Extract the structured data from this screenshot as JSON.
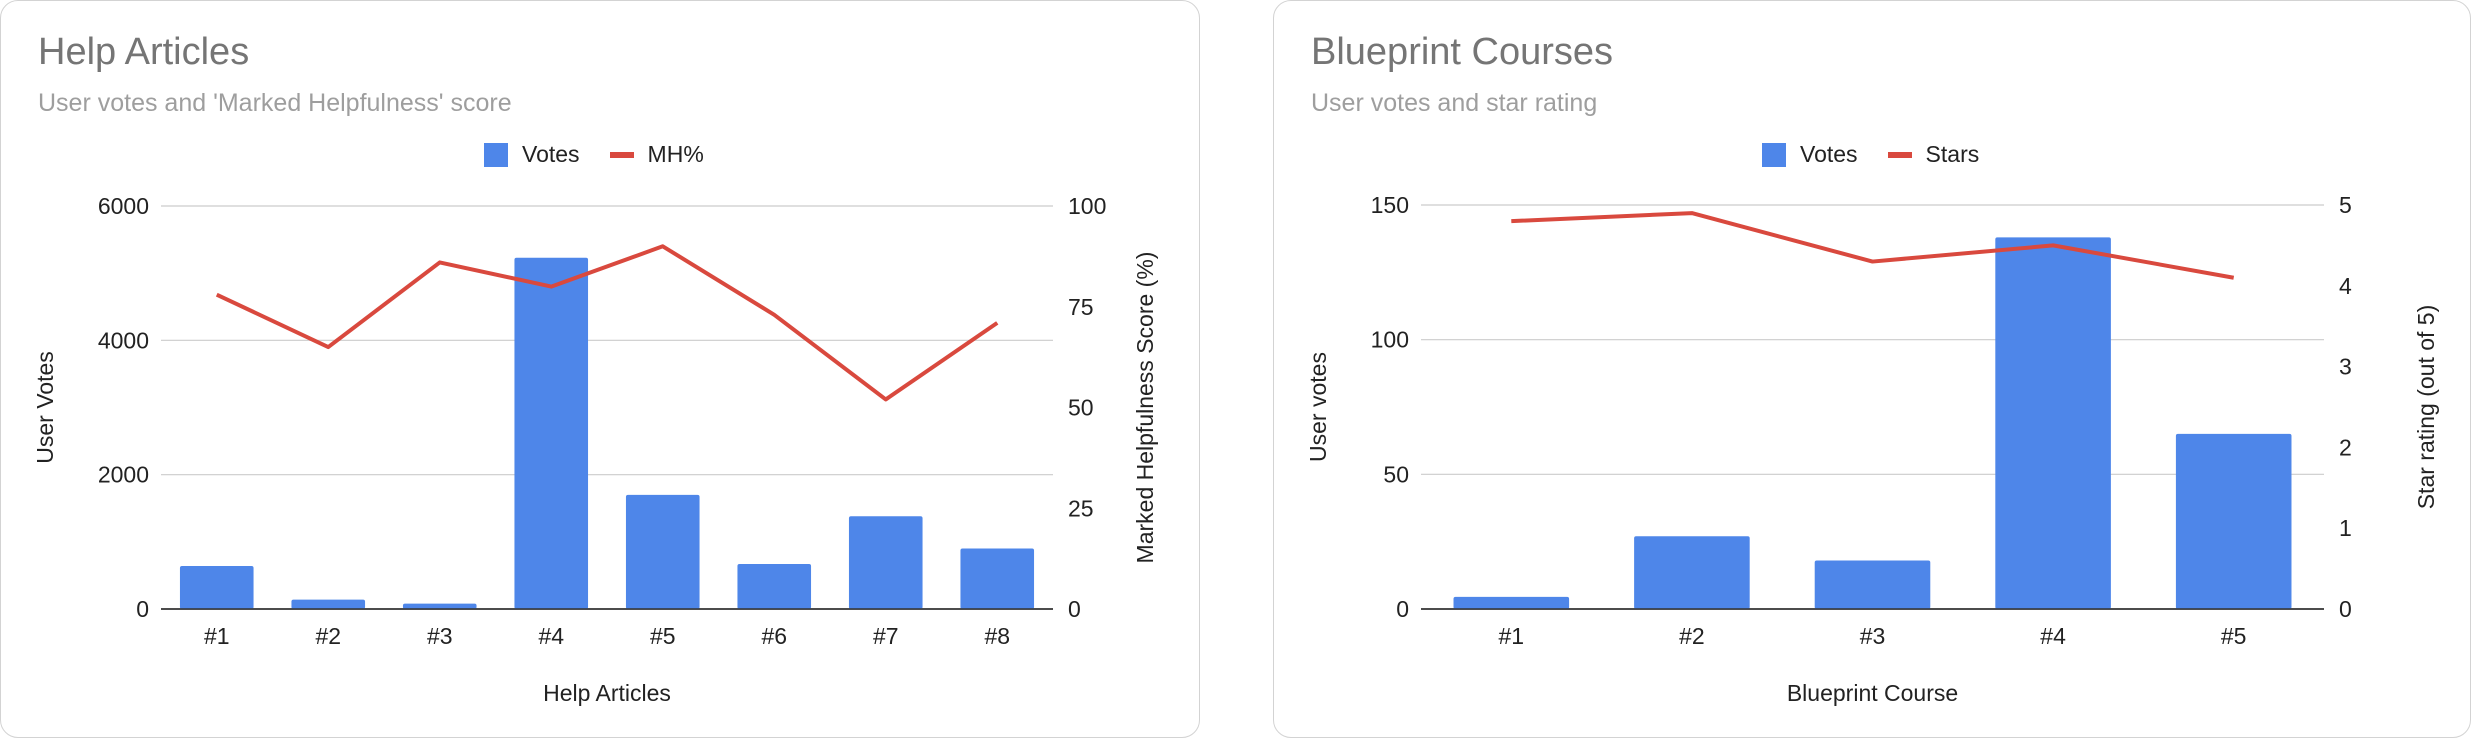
{
  "colors": {
    "bars": "#4e86e9",
    "line": "#d9493e",
    "grid": "#cccccc",
    "border": "#d3d3d3"
  },
  "chart_data": [
    {
      "type": "bar+line",
      "title": "Help Articles",
      "subtitle": "User votes and 'Marked Helpfulness' score",
      "legend": [
        "Votes",
        "MH%"
      ],
      "legend_position": "top",
      "grid": true,
      "xlabel": "Help Articles",
      "ylabel_left": "User Votes",
      "ylabel_right": "Marked Helpfulness Score (%)",
      "categories": [
        "#1",
        "#2",
        "#3",
        "#4",
        "#5",
        "#6",
        "#7",
        "#8"
      ],
      "y_left_ticks": [
        "0",
        "2000",
        "4000",
        "6000"
      ],
      "y_right_ticks": [
        "0",
        "25",
        "50",
        "75",
        "100"
      ],
      "ylim_left": [
        0,
        6000
      ],
      "ylim_right": [
        0,
        100
      ],
      "series": [
        {
          "name": "Votes",
          "type": "bar",
          "axis": "left",
          "values": [
            640,
            140,
            80,
            5230,
            1700,
            670,
            1380,
            900
          ]
        },
        {
          "name": "MH%",
          "type": "line",
          "axis": "right",
          "values": [
            78,
            65,
            86,
            80,
            90,
            73,
            52,
            71
          ]
        }
      ]
    },
    {
      "type": "bar+line",
      "title": "Blueprint Courses",
      "subtitle": "User votes and star rating",
      "legend": [
        "Votes",
        "Stars"
      ],
      "legend_position": "top",
      "grid": true,
      "xlabel": "Blueprint Course",
      "ylabel_left": "User votes",
      "ylabel_right": "Star rating (out of 5)",
      "categories": [
        "#1",
        "#2",
        "#3",
        "#4",
        "#5"
      ],
      "y_left_ticks": [
        "0",
        "50",
        "100",
        "150"
      ],
      "y_right_ticks": [
        "0",
        "1",
        "2",
        "3",
        "4",
        "5"
      ],
      "ylim_left": [
        0,
        150
      ],
      "ylim_right": [
        0,
        5
      ],
      "series": [
        {
          "name": "Votes",
          "type": "bar",
          "axis": "left",
          "values": [
            4.5,
            27,
            18,
            138,
            65
          ]
        },
        {
          "name": "Stars",
          "type": "line",
          "axis": "right",
          "values": [
            4.8,
            4.9,
            4.3,
            4.5,
            4.1
          ]
        }
      ]
    }
  ]
}
